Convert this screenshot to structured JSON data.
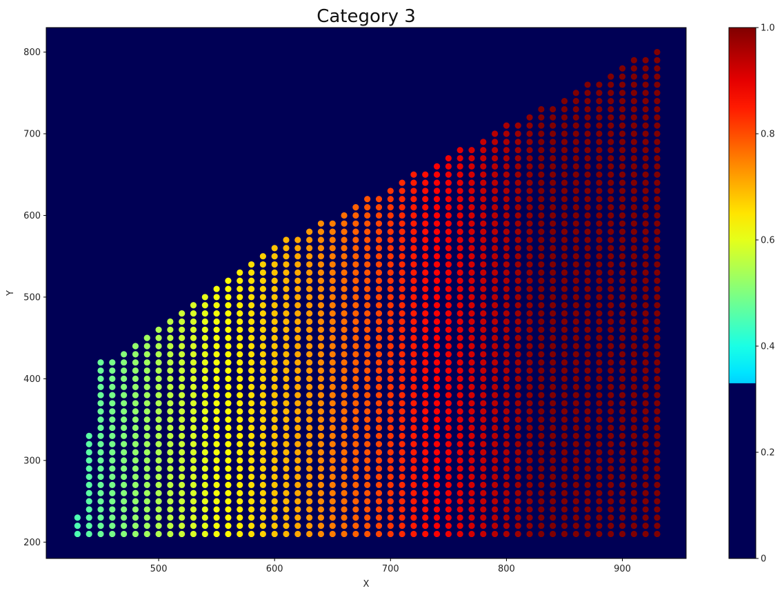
{
  "chart_data": {
    "type": "scatter",
    "title": "Category 3",
    "xlabel": "X",
    "ylabel": "Y",
    "xlim": [
      403,
      955
    ],
    "ylim": [
      180,
      830
    ],
    "x_ticks": [
      500,
      600,
      700,
      800,
      900
    ],
    "y_ticks": [
      200,
      300,
      400,
      500,
      600,
      700,
      800
    ],
    "background": "#000055",
    "colormap": "jet",
    "grid": false,
    "legend": "none",
    "series": [
      {
        "x_start": 430,
        "x_end": 930,
        "x_step": 10,
        "y_step": 10,
        "y_min": 210,
        "color_by": "x",
        "column_max_y": [
          [
            430,
            230
          ],
          [
            440,
            330
          ],
          [
            450,
            420
          ],
          [
            460,
            420
          ],
          [
            470,
            430
          ],
          [
            480,
            440
          ],
          [
            490,
            450
          ],
          [
            500,
            460
          ],
          [
            510,
            470
          ],
          [
            520,
            480
          ],
          [
            530,
            490
          ],
          [
            540,
            500
          ],
          [
            550,
            510
          ],
          [
            560,
            520
          ],
          [
            570,
            530
          ],
          [
            580,
            540
          ],
          [
            590,
            550
          ],
          [
            600,
            560
          ],
          [
            610,
            570
          ],
          [
            620,
            570
          ],
          [
            630,
            580
          ],
          [
            640,
            590
          ],
          [
            650,
            590
          ],
          [
            660,
            600
          ],
          [
            670,
            610
          ],
          [
            680,
            620
          ],
          [
            690,
            620
          ],
          [
            700,
            630
          ],
          [
            710,
            640
          ],
          [
            720,
            650
          ],
          [
            730,
            650
          ],
          [
            740,
            660
          ],
          [
            750,
            670
          ],
          [
            760,
            680
          ],
          [
            770,
            680
          ],
          [
            780,
            690
          ],
          [
            790,
            700
          ],
          [
            800,
            710
          ],
          [
            810,
            710
          ],
          [
            820,
            720
          ],
          [
            830,
            730
          ],
          [
            840,
            730
          ],
          [
            850,
            740
          ],
          [
            860,
            750
          ],
          [
            870,
            760
          ],
          [
            880,
            760
          ],
          [
            890,
            770
          ],
          [
            900,
            780
          ],
          [
            910,
            790
          ],
          [
            920,
            790
          ],
          [
            930,
            800
          ]
        ]
      }
    ]
  },
  "colorbar": {
    "range": [
      0,
      1
    ],
    "ticks": [
      "0",
      "0.2",
      "0.4",
      "0.6",
      "0.8",
      "1.0"
    ],
    "tick_values": [
      0,
      0.2,
      0.4,
      0.6,
      0.8,
      1.0
    ],
    "masked_below": 0.33,
    "masked_color": "#000055"
  }
}
